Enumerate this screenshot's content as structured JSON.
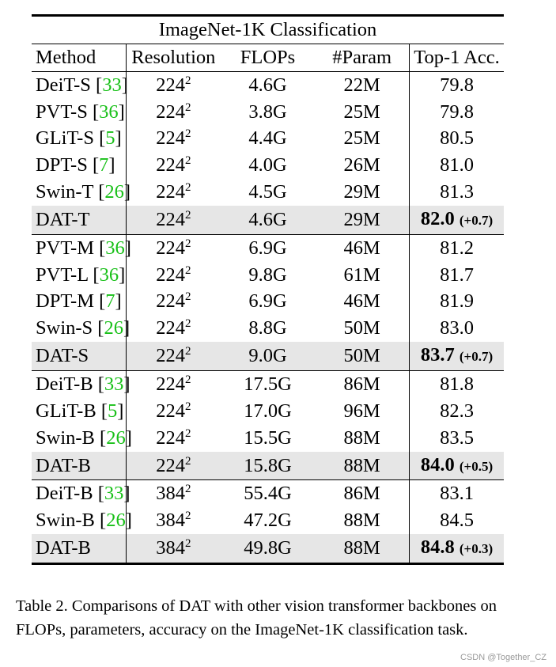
{
  "table": {
    "title": "ImageNet-1K Classification",
    "headers": [
      "Method",
      "Resolution",
      "FLOPs",
      "#Param",
      "Top-1 Acc."
    ],
    "rows": [
      {
        "method": "DeiT-S",
        "ref": "33",
        "res": "224",
        "res_exp": "2",
        "flops": "4.6G",
        "params": "22M",
        "acc": "79.8"
      },
      {
        "method": "PVT-S",
        "ref": "36",
        "res": "224",
        "res_exp": "2",
        "flops": "3.8G",
        "params": "25M",
        "acc": "79.8"
      },
      {
        "method": "GLiT-S",
        "ref": "5",
        "res": "224",
        "res_exp": "2",
        "flops": "4.4G",
        "params": "25M",
        "acc": "80.5"
      },
      {
        "method": "DPT-S",
        "ref": "7",
        "res": "224",
        "res_exp": "2",
        "flops": "4.0G",
        "params": "26M",
        "acc": "81.0"
      },
      {
        "method": "Swin-T",
        "ref": "26",
        "res": "224",
        "res_exp": "2",
        "flops": "4.5G",
        "params": "29M",
        "acc": "81.3"
      },
      {
        "method": "DAT-T",
        "ours": true,
        "res": "224",
        "res_exp": "2",
        "flops": "4.6G",
        "params": "29M",
        "acc": "82.0",
        "delta": "(+0.7)"
      },
      {
        "method": "PVT-M",
        "ref": "36",
        "res": "224",
        "res_exp": "2",
        "flops": "6.9G",
        "params": "46M",
        "acc": "81.2",
        "group_start": true
      },
      {
        "method": "PVT-L",
        "ref": "36",
        "res": "224",
        "res_exp": "2",
        "flops": "9.8G",
        "params": "61M",
        "acc": "81.7"
      },
      {
        "method": "DPT-M",
        "ref": "7",
        "res": "224",
        "res_exp": "2",
        "flops": "6.9G",
        "params": "46M",
        "acc": "81.9"
      },
      {
        "method": "Swin-S",
        "ref": "26",
        "res": "224",
        "res_exp": "2",
        "flops": "8.8G",
        "params": "50M",
        "acc": "83.0"
      },
      {
        "method": "DAT-S",
        "ours": true,
        "res": "224",
        "res_exp": "2",
        "flops": "9.0G",
        "params": "50M",
        "acc": "83.7",
        "delta": "(+0.7)"
      },
      {
        "method": "DeiT-B",
        "ref": "33",
        "res": "224",
        "res_exp": "2",
        "flops": "17.5G",
        "params": "86M",
        "acc": "81.8",
        "group_start": true
      },
      {
        "method": "GLiT-B",
        "ref": "5",
        "res": "224",
        "res_exp": "2",
        "flops": "17.0G",
        "params": "96M",
        "acc": "82.3"
      },
      {
        "method": "Swin-B",
        "ref": "26",
        "res": "224",
        "res_exp": "2",
        "flops": "15.5G",
        "params": "88M",
        "acc": "83.5"
      },
      {
        "method": "DAT-B",
        "ours": true,
        "res": "224",
        "res_exp": "2",
        "flops": "15.8G",
        "params": "88M",
        "acc": "84.0",
        "delta": "(+0.5)"
      },
      {
        "method": "DeiT-B",
        "ref": "33",
        "res": "384",
        "res_exp": "2",
        "flops": "55.4G",
        "params": "86M",
        "acc": "83.1",
        "group_start": true
      },
      {
        "method": "Swin-B",
        "ref": "26",
        "res": "384",
        "res_exp": "2",
        "flops": "47.2G",
        "params": "88M",
        "acc": "84.5"
      },
      {
        "method": "DAT-B",
        "ours": true,
        "res": "384",
        "res_exp": "2",
        "flops": "49.8G",
        "params": "88M",
        "acc": "84.8",
        "delta": "(+0.3)",
        "last": true
      }
    ]
  },
  "caption": "Table 2. Comparisons of DAT with other vision transformer backbones on FLOPs, parameters, accuracy on the ImageNet-1K classification task.",
  "watermark": "CSDN @Together_CZ",
  "colors": {
    "citation": "#18c018",
    "highlight_row": "#e6e6e6"
  }
}
